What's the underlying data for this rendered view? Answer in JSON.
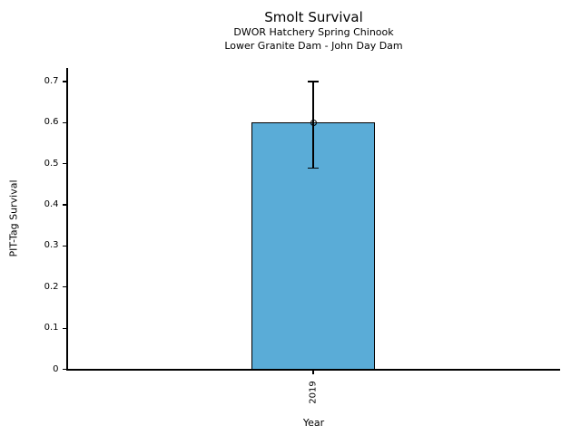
{
  "chart_data": {
    "type": "bar",
    "title": "Smolt Survival",
    "subtitle": [
      "DWOR Hatchery Spring Chinook",
      "Lower Granite Dam - John Day Dam"
    ],
    "xlabel": "Year",
    "ylabel": "PIT-Tag Survival",
    "categories": [
      "2019"
    ],
    "values": [
      0.6
    ],
    "error_bars": [
      {
        "lower": 0.49,
        "upper": 0.7
      }
    ],
    "marker": "open-circle",
    "ytick_labels": [
      "0",
      "0.1",
      "0.2",
      "0.3",
      "0.4",
      "0.5",
      "0.6",
      "0.7"
    ],
    "ytick_values": [
      0,
      0.1,
      0.2,
      0.3,
      0.4,
      0.5,
      0.6,
      0.7
    ],
    "ylim": [
      0,
      0.7
    ],
    "xtick_rotation": 90,
    "grid": false,
    "legend": null,
    "colors": {
      "bar_fill": "#5AACD7",
      "bar_edge": "#000000",
      "error_bar": "#000000",
      "text": "#000000",
      "background": "#FFFFFF"
    }
  }
}
